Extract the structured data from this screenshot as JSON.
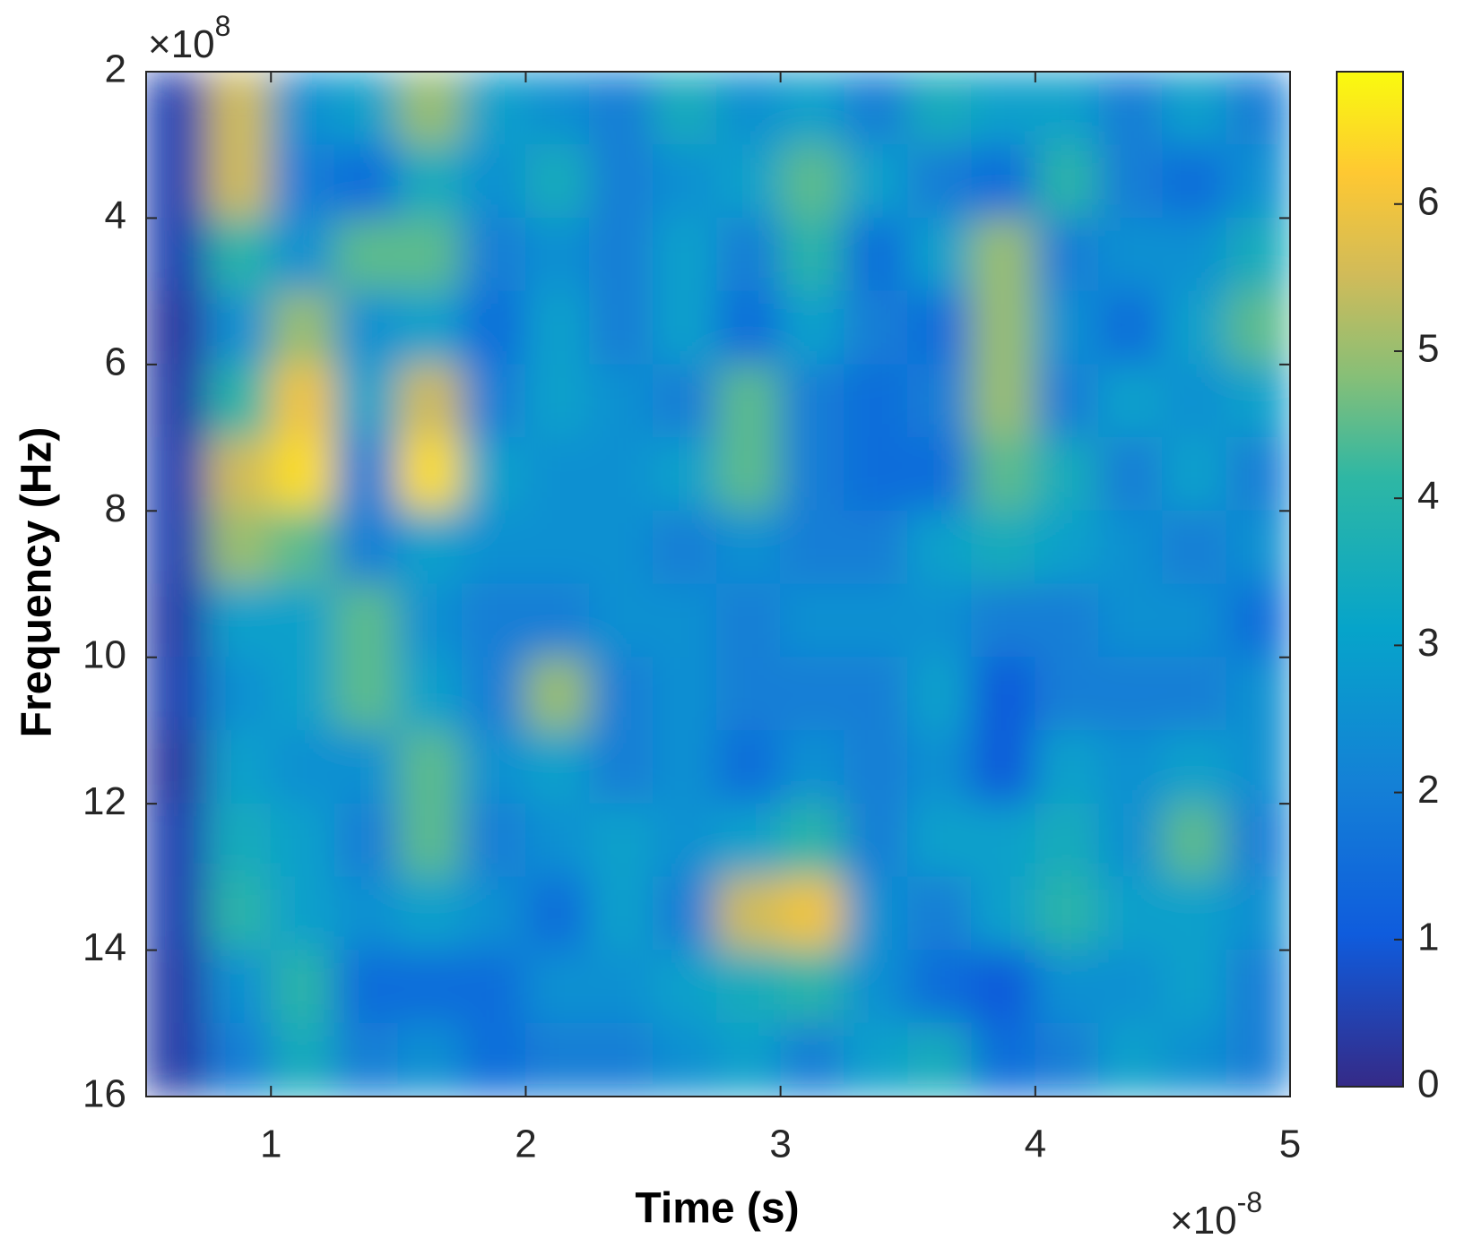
{
  "chart_data": {
    "type": "heatmap",
    "xlabel": "Time (s)",
    "ylabel": "Frequency (Hz)",
    "x_multiplier": {
      "base": "×10",
      "exponent": "-8"
    },
    "y_multiplier": {
      "base": "×10",
      "exponent": "8"
    },
    "x": [
      0.625,
      0.875,
      1.125,
      1.375,
      1.625,
      1.875,
      2.125,
      2.375,
      2.625,
      2.875,
      3.125,
      3.375,
      3.625,
      3.875,
      4.125,
      4.375,
      4.625,
      4.875
    ],
    "y": [
      2.5,
      3.5,
      4.5,
      5.5,
      6.5,
      7.5,
      8.5,
      9.5,
      10.5,
      11.5,
      12.5,
      13.5,
      14.5,
      15.5
    ],
    "z": [
      [
        0.5,
        5.5,
        2.5,
        3,
        5,
        3,
        2.5,
        2,
        3.5,
        2.5,
        3,
        2,
        3.5,
        3,
        3,
        2,
        3,
        2
      ],
      [
        0.5,
        5.5,
        2,
        1.5,
        3.5,
        2.5,
        3.5,
        2,
        2.5,
        3,
        4.5,
        3,
        2,
        1.5,
        4,
        2,
        1.5,
        2.5
      ],
      [
        0.5,
        4,
        2.5,
        4.5,
        4.5,
        2,
        2.5,
        2,
        3,
        2,
        4,
        1.5,
        3,
        5,
        2,
        2.5,
        2.5,
        3.5
      ],
      [
        0.3,
        2.5,
        5,
        2.5,
        3,
        1.5,
        3,
        2,
        3,
        1.5,
        3,
        2,
        1.5,
        5,
        2.5,
        1.5,
        3,
        4.5
      ],
      [
        0.4,
        4,
        6,
        3,
        5.5,
        2,
        3,
        2.5,
        2,
        4.5,
        2,
        1.5,
        2,
        5,
        2,
        3,
        2.5,
        3
      ],
      [
        0.5,
        5.5,
        6.5,
        2,
        6.5,
        3,
        2.5,
        2.5,
        3,
        4.5,
        2,
        1.5,
        1.5,
        4.5,
        3.5,
        2,
        3,
        2
      ],
      [
        0.5,
        5,
        4.5,
        2,
        3,
        2.5,
        2.5,
        2.5,
        2,
        2.5,
        2,
        2,
        3,
        3.5,
        3,
        2.5,
        2,
        2.5
      ],
      [
        0.4,
        3,
        3,
        4.5,
        2.5,
        2,
        2,
        2.5,
        2.5,
        2,
        2.5,
        2.5,
        2.5,
        2,
        2,
        2.5,
        2.5,
        1.5
      ],
      [
        0.5,
        2.5,
        3,
        4.5,
        3,
        2,
        5,
        2,
        2.5,
        2,
        2,
        2,
        3,
        1,
        2,
        2,
        2,
        2.5
      ],
      [
        0.3,
        3,
        2.5,
        2.5,
        4.5,
        2.5,
        3,
        2,
        2.5,
        1.5,
        2.5,
        2,
        2.5,
        1,
        3,
        2.5,
        3,
        2.5
      ],
      [
        0.5,
        3.5,
        3,
        2,
        4.5,
        2,
        2.5,
        3,
        2.5,
        3,
        4,
        2,
        3,
        3,
        3.5,
        2.5,
        4.5,
        2
      ],
      [
        0.5,
        4,
        3,
        2.5,
        3,
        2.5,
        1.5,
        3,
        2,
        5.5,
        6,
        2.5,
        2,
        3,
        4,
        3,
        3,
        2.5
      ],
      [
        0.4,
        2.5,
        4,
        1.5,
        1.5,
        1.5,
        2.5,
        2.5,
        3,
        3.5,
        4,
        2.5,
        1.5,
        1,
        2.5,
        2.5,
        3,
        2
      ],
      [
        0.4,
        2,
        3.5,
        2,
        2.5,
        1.5,
        2,
        2,
        2.5,
        3,
        2,
        3,
        3.5,
        1.5,
        2,
        3,
        2.5,
        2
      ]
    ],
    "xlim": [
      0.51,
      5
    ],
    "xticks": [
      1,
      2,
      3,
      4,
      5
    ],
    "ylim": [
      2,
      16
    ],
    "yticks": [
      2,
      4,
      6,
      8,
      10,
      12,
      14,
      16
    ],
    "y_reversed": true,
    "clim": [
      0,
      6.9
    ],
    "cticks": [
      0,
      1,
      2,
      3,
      4,
      5,
      6
    ],
    "colormap": [
      [
        0,
        "#352a87"
      ],
      [
        0.15,
        "#0f5cdd"
      ],
      [
        0.3,
        "#1481d6"
      ],
      [
        0.45,
        "#06a4ca"
      ],
      [
        0.6,
        "#2eb7a4"
      ],
      [
        0.7,
        "#87bf77"
      ],
      [
        0.8,
        "#d1bb59"
      ],
      [
        0.9,
        "#fec832"
      ],
      [
        1,
        "#f9fb0e"
      ]
    ]
  }
}
